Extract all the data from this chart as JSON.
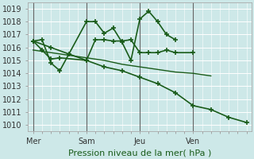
{
  "bg_color": "#cde8e8",
  "grid_color": "#ffffff",
  "line_color": "#1a5c1a",
  "xlabel": "Pression niveau de la mer( hPa )",
  "ylim": [
    1009.5,
    1019.5
  ],
  "yticks": [
    1010,
    1011,
    1012,
    1013,
    1014,
    1015,
    1016,
    1017,
    1018,
    1019
  ],
  "xtick_labels": [
    "Mer",
    "Sam",
    "Jeu",
    "Ven"
  ],
  "xtick_positions": [
    0,
    3,
    6,
    9
  ],
  "xlim": [
    -0.3,
    12.3
  ],
  "series": [
    {
      "x": [
        0,
        0.5,
        1,
        1.5,
        3,
        3.5,
        4,
        4.5,
        5,
        5.5,
        6,
        6.5,
        7,
        7.5,
        8,
        8.5,
        9,
        9.5,
        10,
        10.5,
        11,
        11.5,
        12
      ],
      "y": [
        1016.5,
        1016.6,
        1014.8,
        1014.2,
        1018.0,
        1018.0,
        1017.1,
        1017.5,
        1016.4,
        1015.0,
        1018.2,
        1018.8,
        1018.0,
        1017.0,
        1016.6,
        null,
        null,
        null,
        null,
        null,
        null,
        null,
        null
      ],
      "marker": "+"
    },
    {
      "x": [
        0,
        0.5,
        1,
        1.5,
        3,
        3.5,
        4,
        4.5,
        5,
        5.5,
        6,
        6.5,
        7,
        7.5,
        8,
        9,
        9.5,
        10,
        10.5,
        11,
        11.5,
        12
      ],
      "y": [
        1016.5,
        1015.8,
        1015.1,
        1015.2,
        1015.0,
        1016.6,
        1016.6,
        1016.5,
        1016.5,
        1016.6,
        1015.6,
        1015.6,
        1015.6,
        1015.8,
        1015.6,
        1015.6,
        null,
        null,
        null,
        null,
        null,
        null
      ],
      "marker": "+"
    },
    {
      "x": [
        0,
        1,
        2,
        3,
        4,
        5,
        6,
        7,
        8,
        9,
        10,
        11,
        12
      ],
      "y": [
        1015.8,
        1015.6,
        1015.4,
        1015.2,
        1015.0,
        1014.7,
        1014.5,
        1014.3,
        1014.1,
        1014.0,
        1013.8,
        null,
        null
      ],
      "marker": null
    },
    {
      "x": [
        0,
        1,
        2,
        3,
        4,
        5,
        6,
        7,
        8,
        9,
        10,
        11,
        12
      ],
      "y": [
        1016.5,
        1016.0,
        1015.5,
        1015.0,
        1014.5,
        1014.2,
        1013.7,
        1013.2,
        1012.5,
        1011.5,
        1011.2,
        1010.6,
        1010.2
      ],
      "marker": "+"
    }
  ],
  "vline_positions": [
    0,
    3,
    6,
    9
  ],
  "vline_color": "#666666"
}
